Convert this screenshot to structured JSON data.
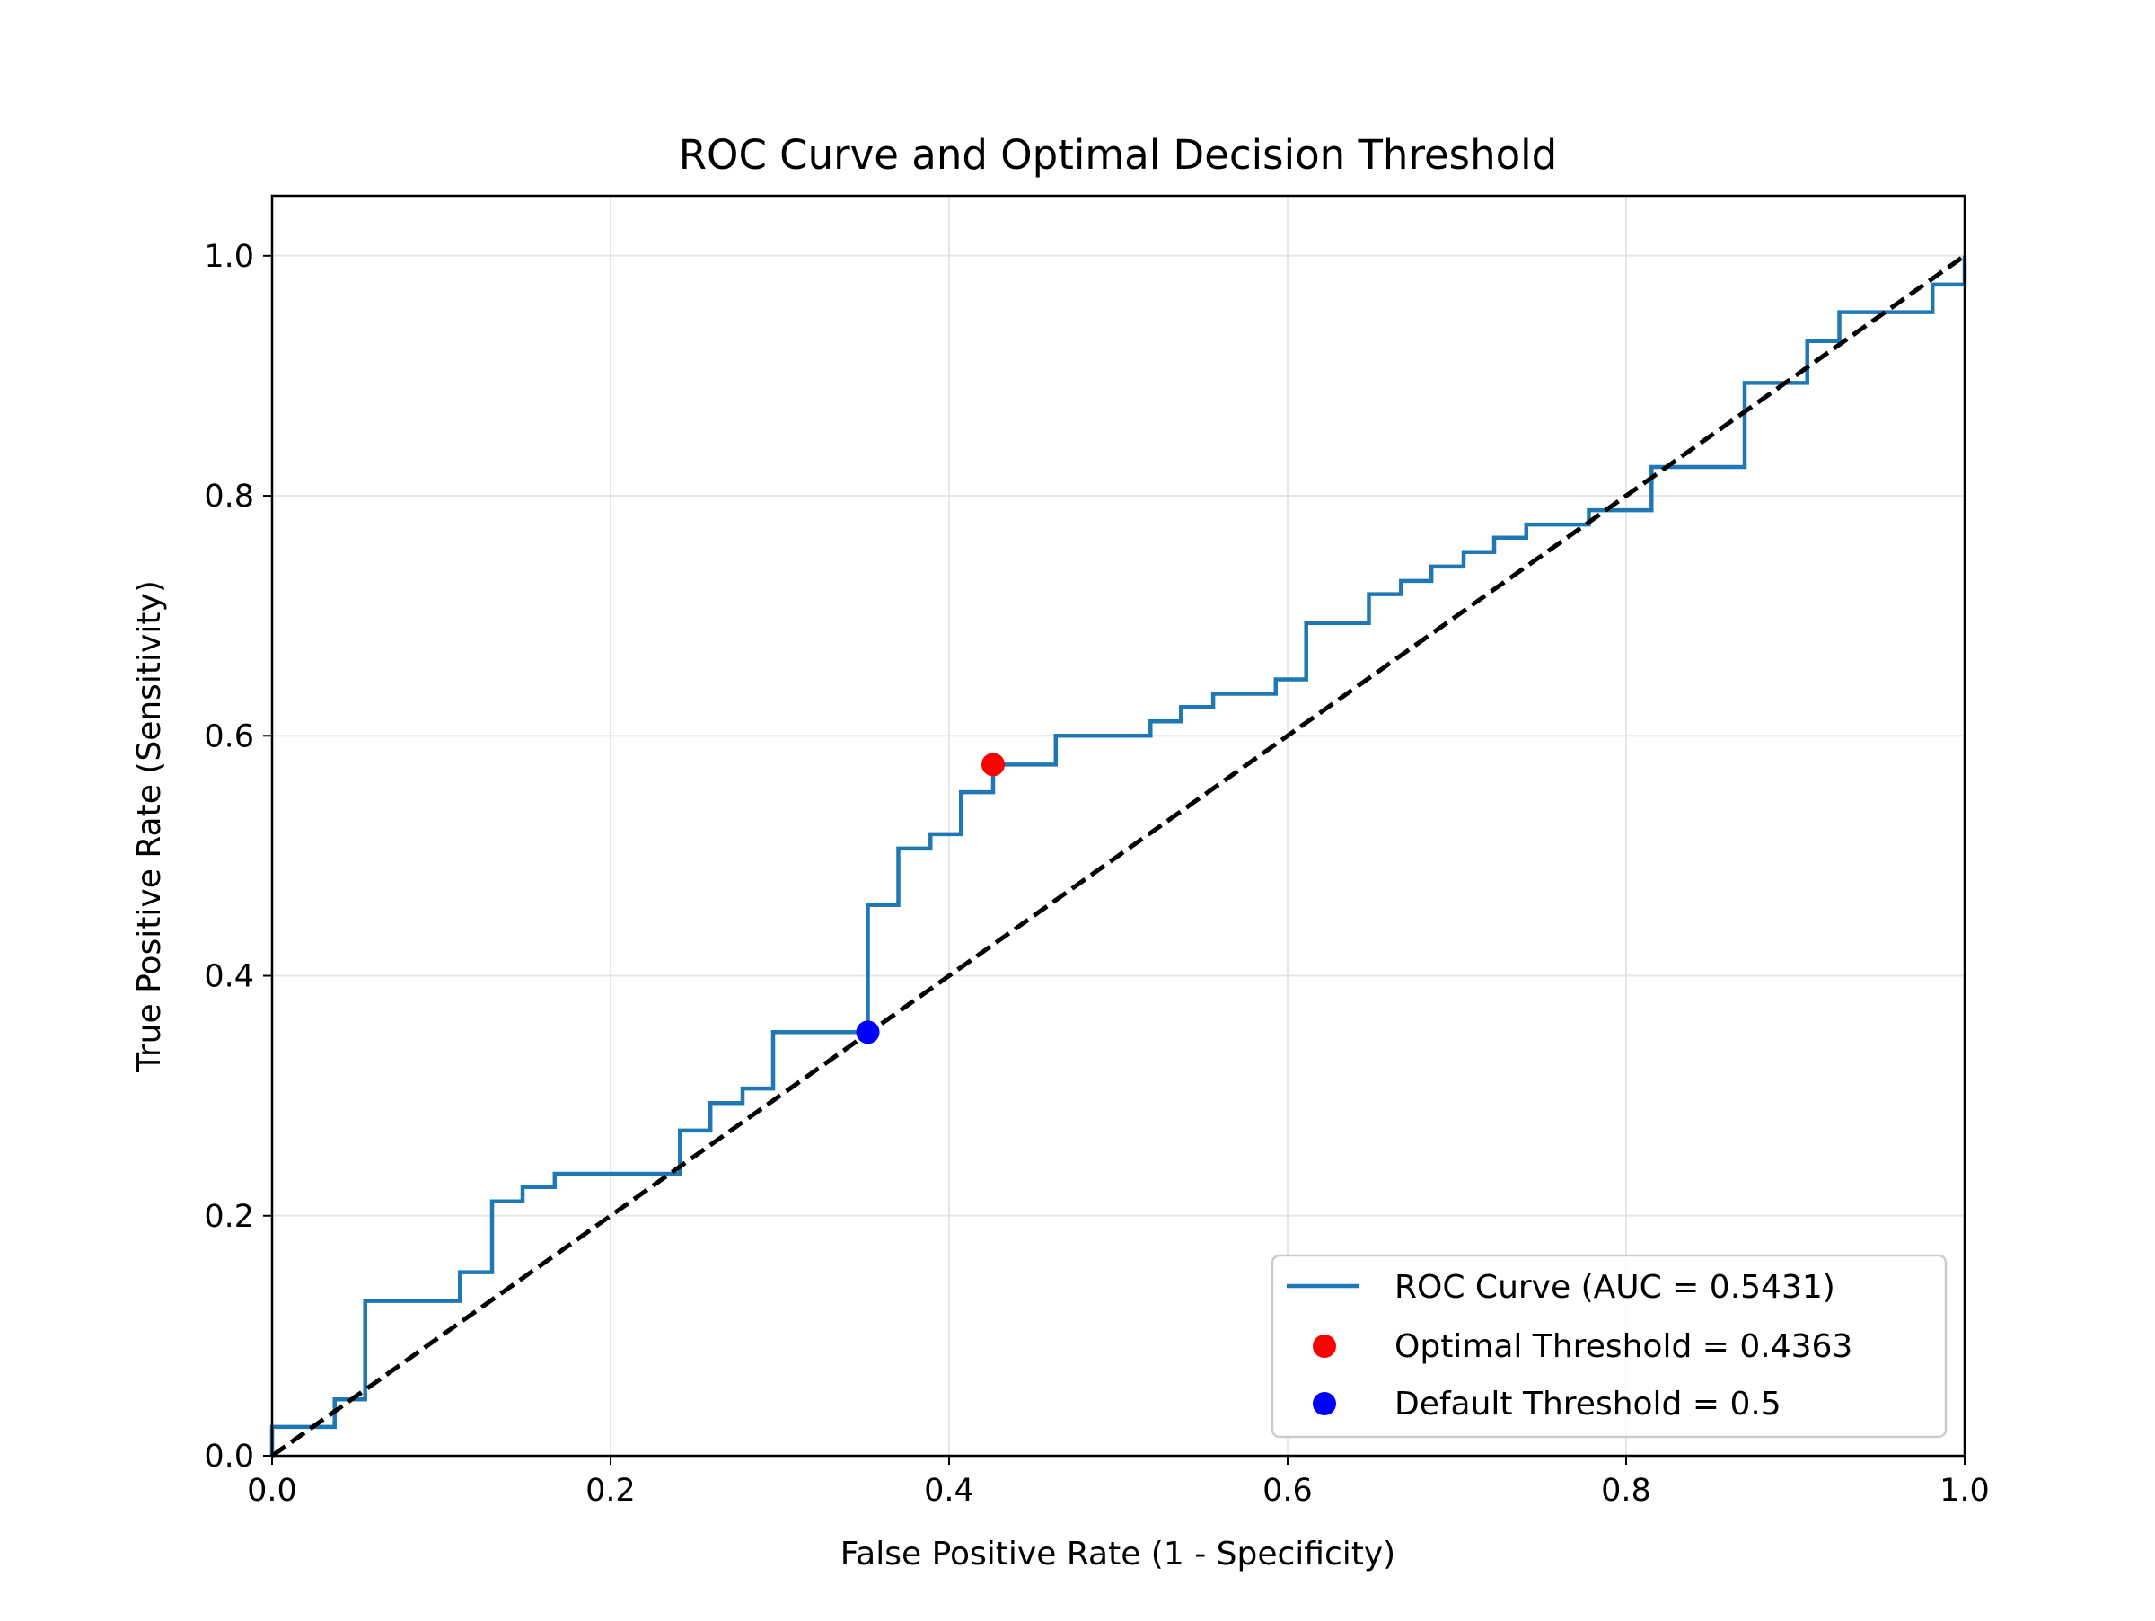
{
  "chart_data": {
    "type": "line",
    "title": "ROC Curve and Optimal Decision Threshold",
    "xlabel": "False Positive Rate (1 - Specificity)",
    "ylabel": "True Positive Rate (Sensitivity)",
    "xlim": [
      0.0,
      1.0
    ],
    "ylim": [
      0.0,
      1.05
    ],
    "xticks": [
      "0.0",
      "0.2",
      "0.4",
      "0.6",
      "0.8",
      "1.0"
    ],
    "yticks": [
      "0.0",
      "0.2",
      "0.4",
      "0.6",
      "0.8",
      "1.0"
    ],
    "grid": true,
    "legend_position": "lower right",
    "colors": {
      "roc": "#1f77b4",
      "diagonal": "#000000",
      "optimal": "#ff0000",
      "default": "#0000ff",
      "grid": "#e6e6e6"
    },
    "series": [
      {
        "name": "ROC Curve (AUC = 0.5431)",
        "style": "step",
        "x": [
          0.0,
          0.0,
          0.037,
          0.037,
          0.055,
          0.055,
          0.111,
          0.111,
          0.13,
          0.13,
          0.148,
          0.148,
          0.167,
          0.167,
          0.241,
          0.241,
          0.259,
          0.259,
          0.278,
          0.278,
          0.296,
          0.296,
          0.352,
          0.352,
          0.37,
          0.37,
          0.389,
          0.389,
          0.407,
          0.407,
          0.426,
          0.426,
          0.463,
          0.463,
          0.519,
          0.519,
          0.537,
          0.537,
          0.556,
          0.556,
          0.593,
          0.593,
          0.611,
          0.611,
          0.648,
          0.648,
          0.667,
          0.667,
          0.685,
          0.685,
          0.704,
          0.704,
          0.722,
          0.722,
          0.741,
          0.741,
          0.778,
          0.778,
          0.815,
          0.815,
          0.87,
          0.87,
          0.907,
          0.907,
          0.926,
          0.926,
          0.981,
          0.981,
          1.0,
          1.0
        ],
        "y": [
          0.0,
          0.024,
          0.024,
          0.047,
          0.047,
          0.129,
          0.129,
          0.153,
          0.153,
          0.212,
          0.212,
          0.224,
          0.224,
          0.235,
          0.235,
          0.271,
          0.271,
          0.294,
          0.294,
          0.306,
          0.306,
          0.353,
          0.353,
          0.459,
          0.459,
          0.506,
          0.506,
          0.518,
          0.518,
          0.553,
          0.553,
          0.576,
          0.576,
          0.6,
          0.6,
          0.612,
          0.612,
          0.624,
          0.624,
          0.635,
          0.635,
          0.647,
          0.647,
          0.694,
          0.694,
          0.718,
          0.718,
          0.729,
          0.729,
          0.741,
          0.741,
          0.753,
          0.753,
          0.765,
          0.765,
          0.776,
          0.776,
          0.788,
          0.788,
          0.824,
          0.824,
          0.894,
          0.894,
          0.929,
          0.929,
          0.953,
          0.953,
          0.976,
          0.976,
          1.0
        ]
      },
      {
        "name": "",
        "style": "dashed",
        "x": [
          0.0,
          1.0
        ],
        "y": [
          0.0,
          1.0
        ]
      }
    ],
    "points": [
      {
        "name": "Optimal Threshold = 0.4363",
        "x": 0.426,
        "y": 0.576
      },
      {
        "name": "Default Threshold = 0.5",
        "x": 0.352,
        "y": 0.353
      }
    ]
  }
}
